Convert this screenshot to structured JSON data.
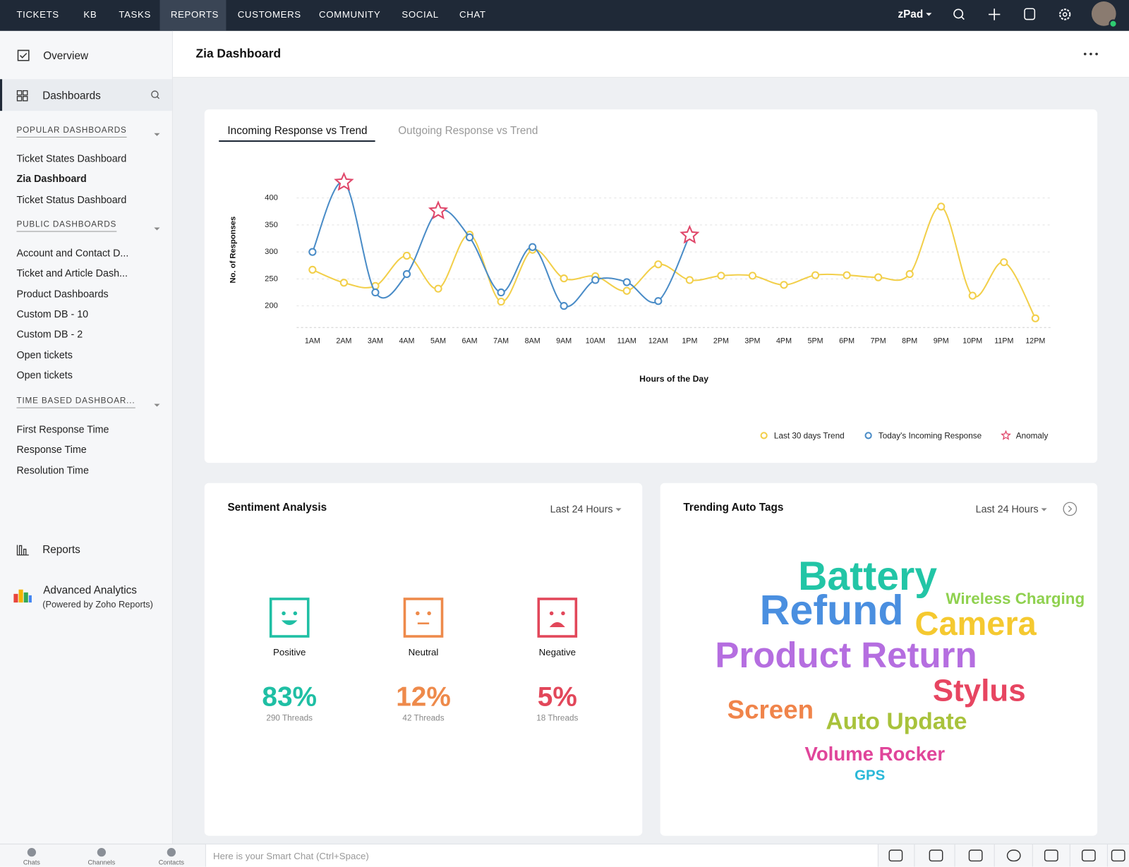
{
  "nav": {
    "items": [
      "TICKETS",
      "KB",
      "TASKS",
      "REPORTS",
      "CUSTOMERS",
      "COMMUNITY",
      "SOCIAL",
      "CHAT"
    ],
    "portal": "zPad"
  },
  "sidebar": {
    "overview": "Overview",
    "dashboards": "Dashboards",
    "groups": [
      {
        "title": "POPULAR DASHBOARDS",
        "items": [
          "Ticket States Dashboard",
          "Zia Dashboard",
          "Ticket Status Dashboard"
        ]
      },
      {
        "title": "PUBLIC DASHBOARDS",
        "items": [
          "Account and Contact D...",
          "Ticket and Article Dash...",
          "Product Dashboards",
          "Custom DB - 10",
          "Custom DB - 2",
          "Open tickets",
          "Open tickets"
        ]
      },
      {
        "title": "TIME BASED DASHBOAR...",
        "items": [
          "First Response Time",
          "Response Time",
          "Resolution Time"
        ]
      }
    ],
    "reports": "Reports",
    "analytics_title": "Advanced Analytics",
    "analytics_subtitle": "(Powered by Zoho Reports)"
  },
  "header": {
    "title": "Zia Dashboard"
  },
  "chart_data": {
    "type": "line",
    "tabs": [
      "Incoming Response vs Trend",
      "Outgoing Response vs Trend"
    ],
    "y_label": "No. of Responses",
    "x_label": "Hours of the Day",
    "categories": [
      "1AM",
      "2AM",
      "3AM",
      "4AM",
      "5AM",
      "6AM",
      "7AM",
      "8AM",
      "9AM",
      "10AM",
      "11AM",
      "12AM",
      "1PM",
      "2PM",
      "3PM",
      "4PM",
      "5PM",
      "6PM",
      "7PM",
      "8PM",
      "9PM",
      "10PM",
      "11PM",
      "12PM"
    ],
    "series": [
      {
        "name": "Last 30 days Trend",
        "color": "#f2cf4a",
        "marker": "circle",
        "values": [
          267,
          243,
          237,
          293,
          232,
          332,
          208,
          304,
          251,
          255,
          228,
          277,
          248,
          256,
          256,
          239,
          257,
          257,
          253,
          259,
          384,
          219,
          281,
          177
        ]
      },
      {
        "name": "Today's Incoming Response",
        "color": "#4a8cc7",
        "marker": "circle",
        "values": [
          300,
          429,
          225,
          259,
          376,
          327,
          225,
          309,
          200,
          248,
          244,
          209,
          331,
          null,
          null,
          null,
          null,
          null,
          null,
          null,
          null,
          null,
          null,
          null
        ]
      },
      {
        "name": "Anomaly",
        "color": "#e0476a",
        "marker": "star",
        "line": false,
        "values": [
          null,
          429,
          null,
          null,
          376,
          null,
          null,
          null,
          null,
          null,
          null,
          null,
          331,
          null,
          null,
          null,
          null,
          null,
          null,
          null,
          null,
          null,
          null,
          null
        ]
      }
    ],
    "ylim": [
      160,
      440
    ],
    "yticks": [
      200,
      250,
      300,
      350,
      400
    ],
    "grid": true,
    "legend": "bottom-right"
  },
  "sentiment": {
    "title": "Sentiment Analysis",
    "filter": "Last 24 Hours",
    "items": [
      {
        "label": "Positive",
        "percent": "83%",
        "threads": "290 Threads",
        "color": "#1fbfa4"
      },
      {
        "label": "Neutral",
        "percent": "12%",
        "threads": "42 Threads",
        "color": "#ee8a4b"
      },
      {
        "label": "Negative",
        "percent": "5%",
        "threads": "18 Threads",
        "color": "#e2475a"
      }
    ]
  },
  "tags": {
    "title": "Trending Auto Tags",
    "filter": "Last 24 Hours",
    "items": [
      {
        "text": "Battery",
        "color": "#22c5a6"
      },
      {
        "text": "Refund",
        "color": "#4a8fe0"
      },
      {
        "text": "Wireless Charging",
        "color": "#8fd14f"
      },
      {
        "text": "Camera",
        "color": "#f5c930"
      },
      {
        "text": "Product Return",
        "color": "#b56ee0"
      },
      {
        "text": "Stylus",
        "color": "#e74561"
      },
      {
        "text": "Screen",
        "color": "#f0844a"
      },
      {
        "text": "Auto Update",
        "color": "#a8c23b"
      },
      {
        "text": "Volume Rocker",
        "color": "#e0459a"
      },
      {
        "text": "GPS",
        "color": "#2ab8d8"
      }
    ]
  },
  "bottom_bar": {
    "items": [
      "Chats",
      "Channels",
      "Contacts"
    ],
    "placeholder": "Here is your Smart Chat (Ctrl+Space)"
  }
}
